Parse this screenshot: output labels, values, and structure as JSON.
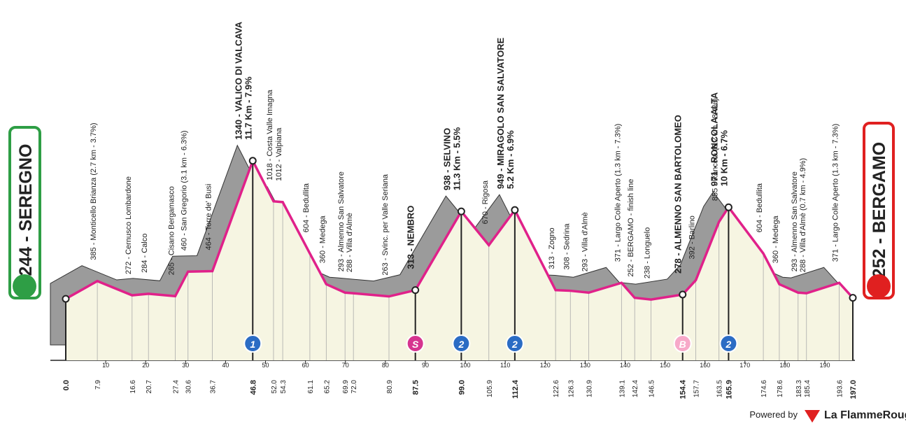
{
  "chart_data": {
    "type": "area",
    "start": "244 - SEREGNO",
    "finish": "252 - BERGAMO",
    "x": [
      0.0,
      7.9,
      16.6,
      20.7,
      27.4,
      30.6,
      36.7,
      46.8,
      52.0,
      54.3,
      61.1,
      65.2,
      69.9,
      72.0,
      80.9,
      87.5,
      99.0,
      105.9,
      112.4,
      122.6,
      126.3,
      130.9,
      139.1,
      142.4,
      146.5,
      154.4,
      157.7,
      163.5,
      165.9,
      174.6,
      178.6,
      183.3,
      185.4,
      193.6,
      197.0
    ],
    "x_labels": [
      "0.0",
      "7.9",
      "16.6",
      "20.7",
      "27.4",
      "30.6",
      "36.7",
      "46.8",
      "52.0",
      "54.3",
      "61.1",
      "65.2",
      "69.9",
      "72.0",
      "80.9",
      "87.5",
      "99.0",
      "105.9",
      "112.4",
      "122.6",
      "126.3",
      "130.9",
      "139.1",
      "142.4",
      "146.5",
      "154.4",
      "157.7",
      "163.5",
      "165.9",
      "174.6",
      "178.6",
      "183.3",
      "185.4",
      "193.6",
      "197.0"
    ],
    "values": [
      244,
      385,
      272,
      284,
      265,
      460,
      464,
      1340,
      1018,
      1012,
      604,
      360,
      293,
      288,
      263,
      313,
      938,
      670,
      949,
      313,
      308,
      293,
      371,
      252,
      238,
      278,
      392,
      855,
      971,
      604,
      360,
      293,
      288,
      371,
      252
    ],
    "labels": [
      null,
      [
        "385 - Monticello Brianza (2.7 km - 3.7%)"
      ],
      [
        "272 - Cernusco Lombardone"
      ],
      [
        "284 - Calco"
      ],
      [
        "265 - Cisano Bergamasco"
      ],
      [
        "460 - San Gregorio (3.1 km - 6.3%)"
      ],
      [
        "464 - Torre de' Busi"
      ],
      [
        "1340 - VALICO DI VALCAVA",
        "11.7 Km - 7.9%"
      ],
      [
        "1018 - Costa Valle Imagna"
      ],
      [
        "1012 - Valpiana"
      ],
      [
        "604 - Bedullita"
      ],
      [
        "360 - Medega"
      ],
      [
        "293 - Almenno San Salvatore"
      ],
      [
        "288 - Villa d'Almè"
      ],
      [
        "263 - Svinc. per Valle Seriana"
      ],
      [
        "313 - NEMBRO"
      ],
      [
        "938 - SELVINO",
        "11.3 Km - 5.5%"
      ],
      [
        "670 - Rigosa"
      ],
      [
        "949 - MIRAGOLO SAN SALVATORE",
        "5.2 Km - 6.9%"
      ],
      [
        "313 - Zogno"
      ],
      [
        "308 - Sedrina"
      ],
      [
        "293 - Villa d'Almè"
      ],
      [
        "371 - Largo Colle Aperto (1.3 km - 7.3%)"
      ],
      [
        "252 - BERGAMO - finish line"
      ],
      [
        "238 - Longuelo"
      ],
      [
        "278 - ALMENNO SAN BARTOLOMEO"
      ],
      [
        "392 - Barlino"
      ],
      [
        "855 - Roncola (6.2 km - 8.4%)"
      ],
      [
        "971 - RONCOLA ALTA",
        "10 Km - 6.7%"
      ],
      [
        "604 - Bedullita"
      ],
      [
        "360 - Medega"
      ],
      [
        "293 - Almenno San Salvatore"
      ],
      [
        "288 - Villa d'Almè (0.7 km - 4.9%)"
      ],
      [
        "371 - Largo Colle Aperto (1.3 km - 7.3%)"
      ],
      null
    ],
    "major_points": [
      0,
      7,
      15,
      16,
      18,
      25,
      28,
      34
    ],
    "markers": [
      {
        "x": 46.8,
        "label": "1",
        "color": "#2b6cc4"
      },
      {
        "x": 87.5,
        "label": "S",
        "color": "#d6348f"
      },
      {
        "x": 99.0,
        "label": "2",
        "color": "#2b6cc4"
      },
      {
        "x": 112.4,
        "label": "2",
        "color": "#2b6cc4"
      },
      {
        "x": 154.4,
        "label": "B",
        "color": "#f7a9c9"
      },
      {
        "x": 165.9,
        "label": "2",
        "color": "#2b6cc4"
      }
    ],
    "xlim": [
      0,
      197
    ],
    "xticks": [
      10,
      20,
      30,
      40,
      50,
      60,
      70,
      80,
      90,
      100,
      110,
      120,
      130,
      140,
      150,
      160,
      170,
      180,
      190
    ],
    "ylim": [
      0,
      1400
    ],
    "yticks": [
      200,
      400,
      600,
      800,
      1000,
      1200
    ],
    "line_color": "#e0218a",
    "relief_color": "#9b9b9b",
    "fill_color": "#f6f5e2"
  },
  "footer": {
    "powered": "Powered by",
    "brand": "La FlammeRouge"
  }
}
